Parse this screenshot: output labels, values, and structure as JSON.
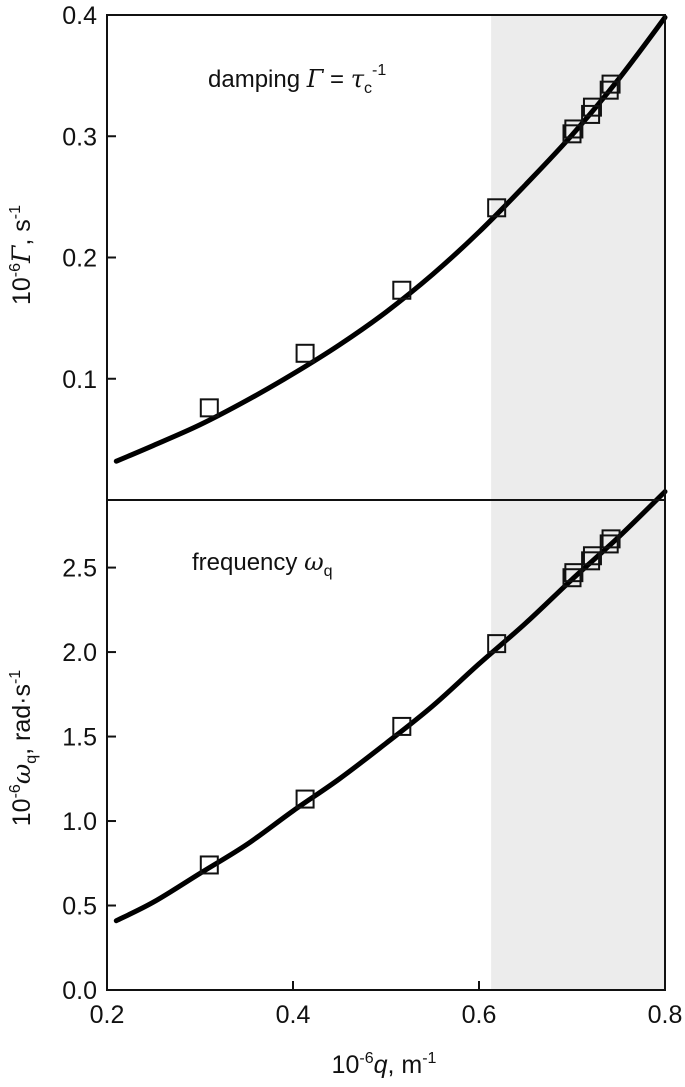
{
  "chart_data": [
    {
      "type": "scatter",
      "panel": "top",
      "annotation": {
        "prefix": "damping ",
        "symbol": "Γ",
        "equals": " = ",
        "tau": "τ",
        "tau_sub": "c",
        "tau_sup": "-1"
      },
      "ylabel": {
        "scale_base": "10",
        "scale_exp": "-6",
        "symbol": "Γ",
        "unit_text": ", s",
        "unit_exp": "-1"
      },
      "xlim": [
        0.2,
        0.8
      ],
      "ylim": [
        0.0,
        0.4
      ],
      "yticks": [
        0.1,
        0.2,
        0.3,
        0.4
      ],
      "ytick_labels": [
        "0.1",
        "0.2",
        "0.3",
        "0.4"
      ],
      "shaded_region_x": [
        0.613,
        0.8
      ],
      "shaded_color": "#ececec",
      "points": [
        {
          "x": 0.31,
          "y": 0.076
        },
        {
          "x": 0.413,
          "y": 0.121
        },
        {
          "x": 0.517,
          "y": 0.173
        },
        {
          "x": 0.619,
          "y": 0.241
        },
        {
          "x": 0.7,
          "y": 0.302
        },
        {
          "x": 0.702,
          "y": 0.306
        },
        {
          "x": 0.72,
          "y": 0.318
        },
        {
          "x": 0.722,
          "y": 0.324
        },
        {
          "x": 0.74,
          "y": 0.338
        },
        {
          "x": 0.742,
          "y": 0.343
        }
      ],
      "fit_curve": [
        {
          "x": 0.21,
          "y": 0.032
        },
        {
          "x": 0.25,
          "y": 0.045
        },
        {
          "x": 0.3,
          "y": 0.062
        },
        {
          "x": 0.35,
          "y": 0.082
        },
        {
          "x": 0.4,
          "y": 0.104
        },
        {
          "x": 0.45,
          "y": 0.128
        },
        {
          "x": 0.5,
          "y": 0.155
        },
        {
          "x": 0.55,
          "y": 0.186
        },
        {
          "x": 0.6,
          "y": 0.221
        },
        {
          "x": 0.65,
          "y": 0.26
        },
        {
          "x": 0.7,
          "y": 0.301
        },
        {
          "x": 0.75,
          "y": 0.347
        },
        {
          "x": 0.8,
          "y": 0.398
        }
      ]
    },
    {
      "type": "scatter",
      "panel": "bottom",
      "annotation": {
        "prefix": "frequency ",
        "symbol": "ω",
        "symbol_sub": "q"
      },
      "xlabel": {
        "scale_base": "10",
        "scale_exp": "-6",
        "symbol": "q",
        "unit_text": ", m",
        "unit_exp": "-1"
      },
      "ylabel": {
        "scale_base": "10",
        "scale_exp": "-6",
        "symbol": "ω",
        "symbol_sub": "q",
        "unit_text": ", rad·s",
        "unit_exp": "-1"
      },
      "xlim": [
        0.2,
        0.8
      ],
      "ylim": [
        0.0,
        2.9
      ],
      "xticks": [
        0.2,
        0.4,
        0.6,
        0.8
      ],
      "xtick_labels": [
        "0.2",
        "0.4",
        "0.6",
        "0.8"
      ],
      "yticks": [
        0.0,
        0.5,
        1.0,
        1.5,
        2.0,
        2.5
      ],
      "ytick_labels": [
        "0.0",
        "0.5",
        "1.0",
        "1.5",
        "2.0",
        "2.5"
      ],
      "shaded_region_x": [
        0.613,
        0.8
      ],
      "shaded_color": "#ececec",
      "points": [
        {
          "x": 0.31,
          "y": 0.74
        },
        {
          "x": 0.413,
          "y": 1.13
        },
        {
          "x": 0.517,
          "y": 1.56
        },
        {
          "x": 0.619,
          "y": 2.05
        },
        {
          "x": 0.7,
          "y": 2.44
        },
        {
          "x": 0.702,
          "y": 2.47
        },
        {
          "x": 0.72,
          "y": 2.54
        },
        {
          "x": 0.722,
          "y": 2.57
        },
        {
          "x": 0.74,
          "y": 2.64
        },
        {
          "x": 0.742,
          "y": 2.67
        }
      ],
      "fit_curve": [
        {
          "x": 0.21,
          "y": 0.41
        },
        {
          "x": 0.25,
          "y": 0.52
        },
        {
          "x": 0.3,
          "y": 0.69
        },
        {
          "x": 0.35,
          "y": 0.86
        },
        {
          "x": 0.4,
          "y": 1.06
        },
        {
          "x": 0.45,
          "y": 1.25
        },
        {
          "x": 0.5,
          "y": 1.46
        },
        {
          "x": 0.55,
          "y": 1.68
        },
        {
          "x": 0.6,
          "y": 1.93
        },
        {
          "x": 0.65,
          "y": 2.17
        },
        {
          "x": 0.7,
          "y": 2.43
        },
        {
          "x": 0.75,
          "y": 2.68
        },
        {
          "x": 0.8,
          "y": 2.95
        }
      ]
    }
  ]
}
